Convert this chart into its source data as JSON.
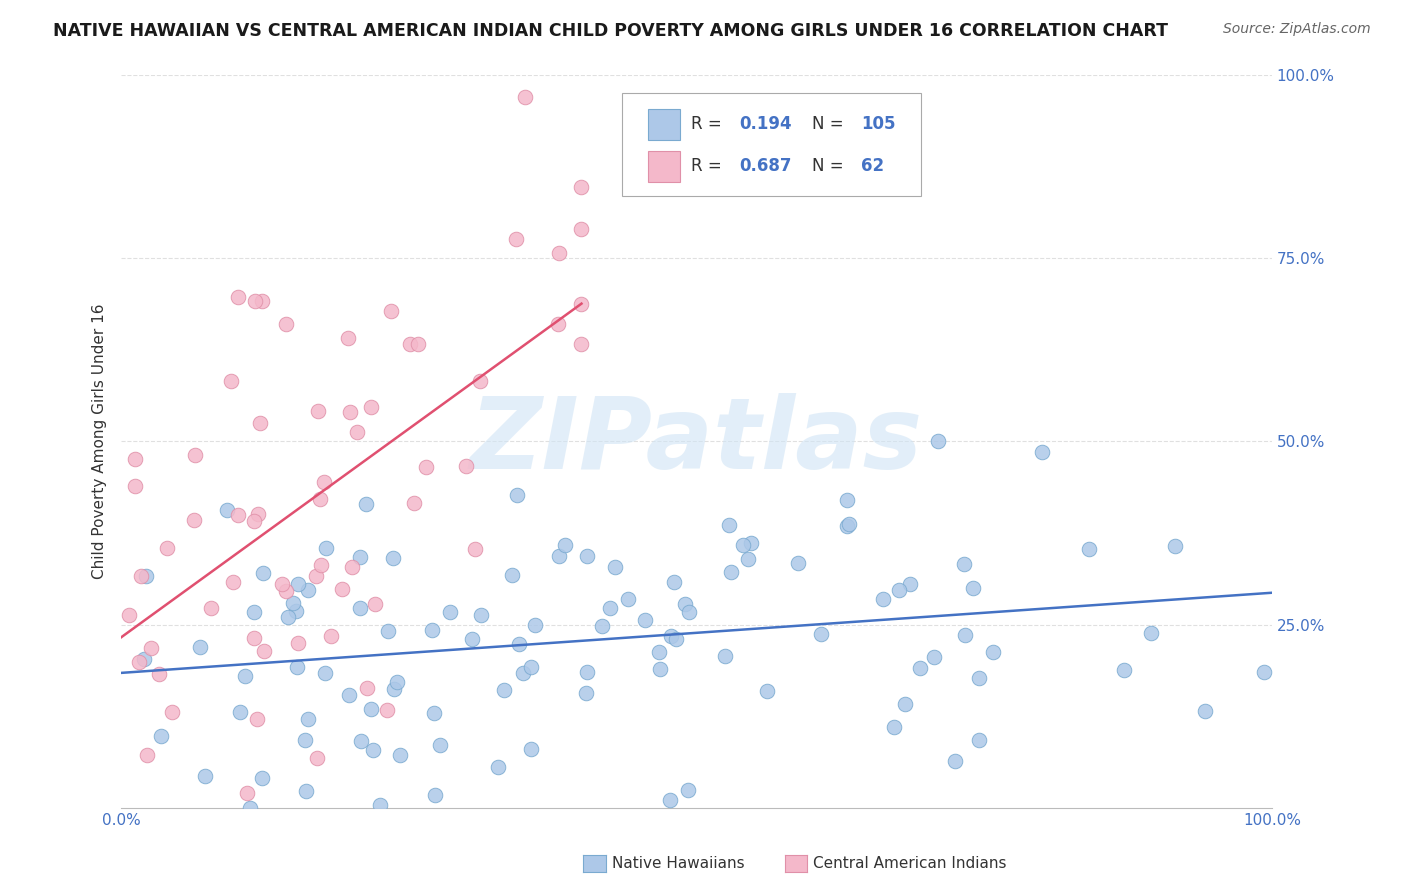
{
  "title": "NATIVE HAWAIIAN VS CENTRAL AMERICAN INDIAN CHILD POVERTY AMONG GIRLS UNDER 16 CORRELATION CHART",
  "source": "Source: ZipAtlas.com",
  "ylabel": "Child Poverty Among Girls Under 16",
  "watermark_text": "ZIPatlas",
  "series1": {
    "name": "Native Hawaiians",
    "R": 0.194,
    "N": 105,
    "marker_color": "#adc8e8",
    "marker_edge": "#7aaad0",
    "line_color": "#4472c4"
  },
  "series2": {
    "name": "Central American Indians",
    "R": 0.687,
    "N": 62,
    "marker_color": "#f4b8ca",
    "marker_edge": "#e090a8",
    "line_color": "#e05070"
  },
  "xlim": [
    0,
    1
  ],
  "ylim": [
    0,
    1
  ],
  "ytick_vals": [
    0.25,
    0.5,
    0.75,
    1.0
  ],
  "ytick_labels": [
    "25.0%",
    "50.0%",
    "75.0%",
    "100.0%"
  ],
  "xtick_vals": [
    0.0,
    1.0
  ],
  "xtick_labels": [
    "0.0%",
    "100.0%"
  ],
  "background_color": "#ffffff",
  "grid_color": "#e0e0e0",
  "axis_tick_color": "#4472c4",
  "title_fontsize": 12.5,
  "source_fontsize": 10,
  "ylabel_fontsize": 11,
  "tick_fontsize": 11,
  "legend_fontsize": 12,
  "watermark_color": "#d0e4f5",
  "watermark_alpha": 0.6
}
